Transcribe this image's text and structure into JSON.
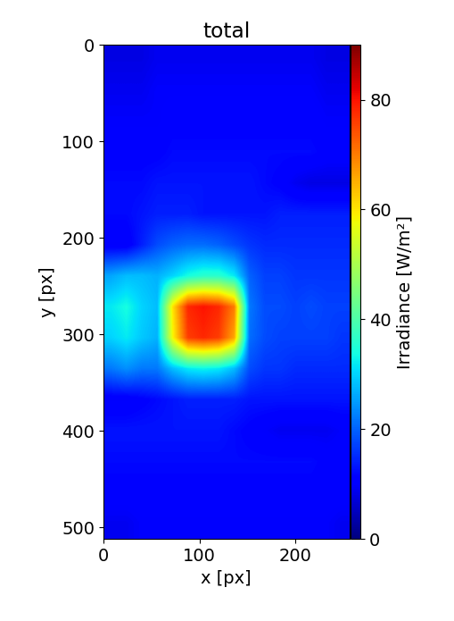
{
  "chart_data": {
    "type": "heatmap",
    "title": "total",
    "x_label": "x [px]",
    "y_label": "y [px]",
    "xlim": [
      0,
      256
    ],
    "ylim": [
      512,
      0
    ],
    "xticks": [
      0,
      100,
      200
    ],
    "yticks": [
      0,
      100,
      200,
      300,
      400,
      500
    ],
    "color": "jet",
    "colorbar_range": [
      0,
      90
    ],
    "colorbar_ticks": [
      0,
      20,
      40,
      60,
      80
    ],
    "colorbar_label": "Irradiance [W/m²]",
    "cells": [
      [
        8,
        8,
        8,
        9,
        9,
        9,
        9,
        9,
        9,
        9,
        9,
        9,
        9,
        9,
        8,
        8
      ],
      [
        9,
        9,
        9,
        10,
        10,
        10,
        10,
        10,
        10,
        10,
        10,
        10,
        10,
        10,
        9,
        9
      ],
      [
        10,
        10,
        10,
        10,
        11,
        11,
        11,
        11,
        11,
        11,
        11,
        11,
        11,
        11,
        10,
        10
      ],
      [
        11,
        11,
        11,
        11,
        12,
        12,
        12,
        12,
        12,
        12,
        12,
        12,
        12,
        12,
        11,
        11
      ],
      [
        12,
        12,
        12,
        13,
        13,
        13,
        13,
        13,
        13,
        13,
        12,
        11,
        9,
        8,
        8,
        8
      ],
      [
        12,
        12,
        13,
        14,
        14,
        14,
        13,
        13,
        13,
        13,
        13,
        14,
        14,
        14,
        14,
        14
      ],
      [
        10,
        10,
        14,
        18,
        20,
        21,
        21,
        20,
        18,
        16,
        15,
        15,
        15,
        15,
        15,
        15
      ],
      [
        26,
        28,
        28,
        27,
        30,
        34,
        36,
        36,
        32,
        20,
        17,
        17,
        16,
        16,
        16,
        16
      ],
      [
        32,
        34,
        30,
        28,
        60,
        78,
        80,
        78,
        70,
        22,
        18,
        18,
        17,
        18,
        17,
        17
      ],
      [
        30,
        32,
        29,
        27,
        58,
        76,
        78,
        76,
        66,
        21,
        18,
        17,
        17,
        17,
        17,
        16
      ],
      [
        22,
        24,
        22,
        22,
        28,
        32,
        33,
        32,
        28,
        18,
        16,
        16,
        15,
        15,
        15,
        15
      ],
      [
        10,
        10,
        11,
        12,
        13,
        14,
        14,
        14,
        14,
        13,
        13,
        13,
        13,
        13,
        13,
        13
      ],
      [
        13,
        13,
        13,
        13,
        13,
        13,
        13,
        13,
        12,
        11,
        10,
        9,
        9,
        9,
        9,
        10
      ],
      [
        12,
        12,
        12,
        12,
        12,
        12,
        12,
        12,
        12,
        12,
        12,
        12,
        12,
        12,
        11,
        11
      ],
      [
        11,
        11,
        11,
        11,
        11,
        11,
        11,
        11,
        11,
        11,
        11,
        11,
        11,
        11,
        11,
        11
      ],
      [
        9,
        9,
        10,
        10,
        10,
        10,
        10,
        10,
        10,
        10,
        10,
        10,
        10,
        10,
        10,
        9
      ]
    ]
  }
}
